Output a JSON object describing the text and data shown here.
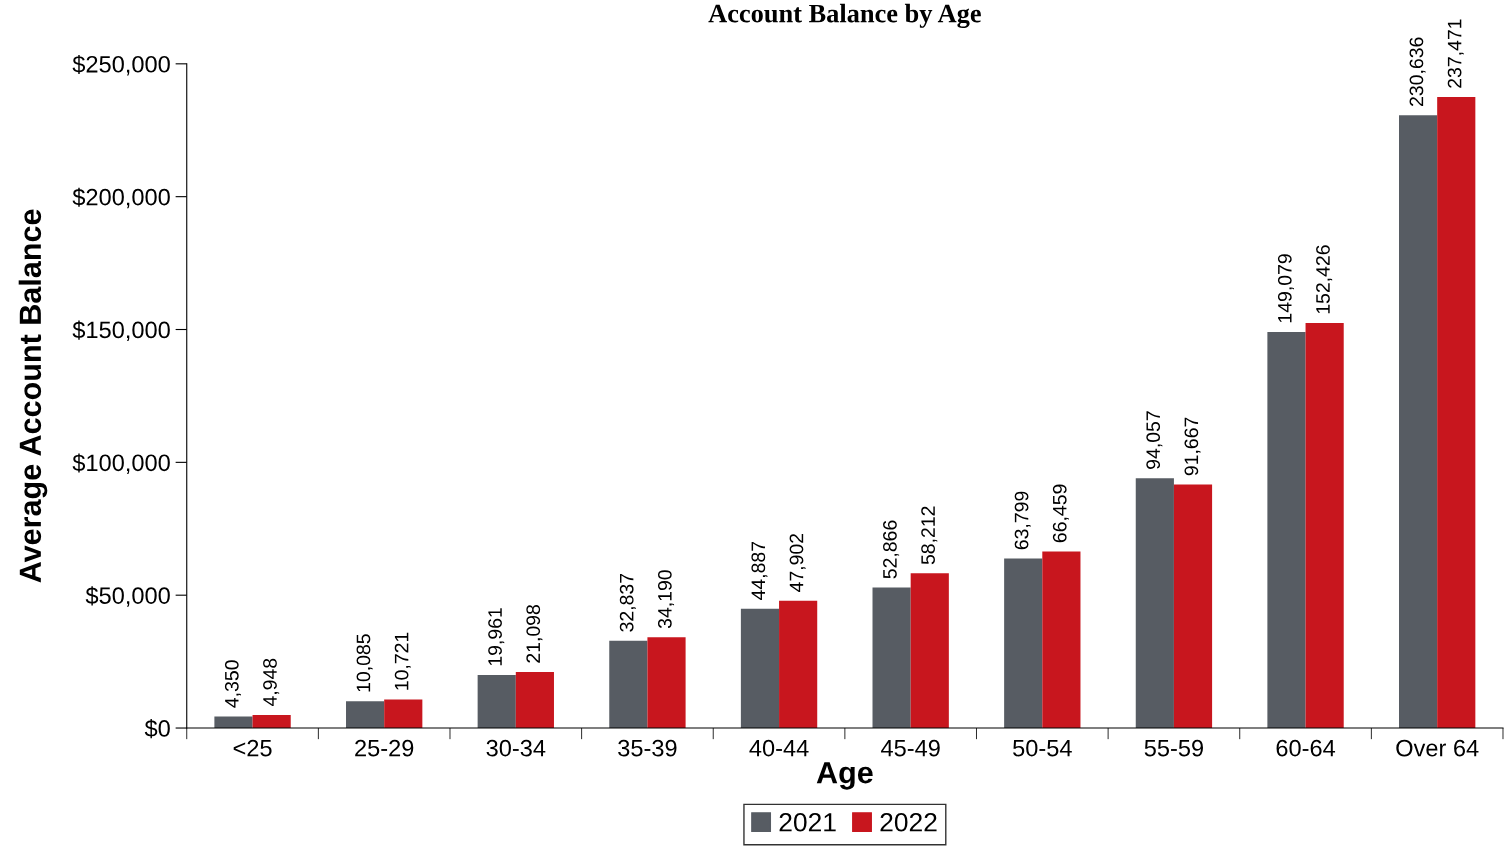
{
  "chart_data": {
    "type": "bar",
    "title": "Account Balance by Age",
    "xlabel": "Age",
    "ylabel": "Average Account Balance",
    "categories": [
      "<25",
      "25-29",
      "30-34",
      "35-39",
      "40-44",
      "45-49",
      "50-54",
      "55-59",
      "60-64",
      "Over 64"
    ],
    "series": [
      {
        "name": "2021",
        "color": "#575c63",
        "values": [
          4350,
          10085,
          19961,
          32837,
          44887,
          52866,
          63799,
          94057,
          149079,
          230636
        ],
        "value_labels": [
          "4,350",
          "10,085",
          "19,961",
          "32,837",
          "44,887",
          "52,866",
          "63,799",
          "94,057",
          "149,079",
          "230,636"
        ]
      },
      {
        "name": "2022",
        "color": "#c8161e",
        "values": [
          4948,
          10721,
          21098,
          34190,
          47902,
          58212,
          66459,
          91667,
          152426,
          237471
        ],
        "value_labels": [
          "4,948",
          "10,721",
          "21,098",
          "34,190",
          "47,902",
          "58,212",
          "66,459",
          "91,667",
          "152,426",
          "237,471"
        ]
      }
    ],
    "ylim": [
      0,
      250000
    ],
    "yticks": [
      {
        "value": 0,
        "label": "$0"
      },
      {
        "value": 50000,
        "label": "$50,000"
      },
      {
        "value": 100000,
        "label": "$100,000"
      },
      {
        "value": 150000,
        "label": "$150,000"
      },
      {
        "value": 200000,
        "label": "$200,000"
      },
      {
        "value": 250000,
        "label": "$250,000"
      }
    ],
    "grid": false,
    "legend": "bottom"
  }
}
